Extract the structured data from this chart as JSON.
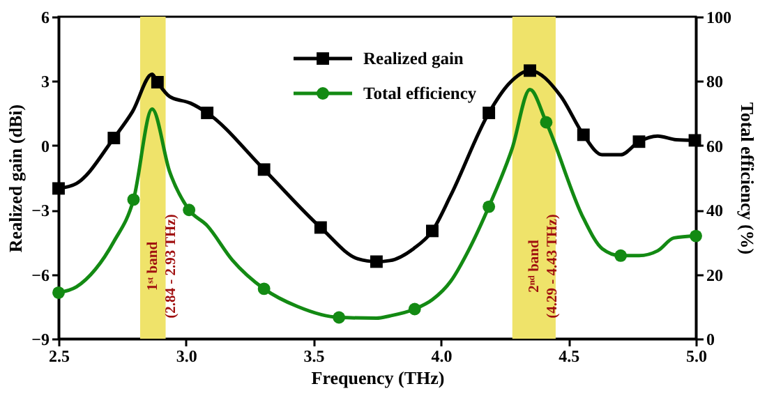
{
  "chart_data": {
    "type": "line",
    "xlabel": "Frequency (THz)",
    "ylabel": "Realized gain (dBi)",
    "y2label": "Total efficiency (%)",
    "xlim": [
      2.5,
      5.0
    ],
    "xticks": [
      2.5,
      {
        "value": 3,
        "label": "3.0"
      },
      3.5,
      {
        "value": 4,
        "label": "4.0"
      },
      4.5,
      {
        "value": 5,
        "label": "5.0"
      }
    ],
    "ylim": [
      -9,
      6
    ],
    "yticks": [
      -9,
      -6,
      -3,
      0,
      3,
      6
    ],
    "y2lim": [
      0,
      100
    ],
    "y2ticks": [
      0,
      20,
      40,
      60,
      80,
      100
    ],
    "grid": false,
    "legend": "top",
    "line_style": "solid",
    "bands": [
      {
        "axis": "x",
        "from": 2.82,
        "to": 2.92,
        "label": "1ˢᵗ band\n(2.84 - 2.93 THz)",
        "color": "#efe36a"
      },
      {
        "axis": "x",
        "from": 4.28,
        "to": 4.45,
        "label": "2ⁿᵈ band\n(4.29 - 4.43 THz)",
        "color": "#efe36a"
      }
    ],
    "series": [
      {
        "name": "Realized gain",
        "color": "#000000",
        "x": [
          2.5,
          2.57,
          2.717,
          2.79,
          2.867,
          2.888,
          2.936,
          3.018,
          3.083,
          3.306,
          3.528,
          3.674,
          3.747,
          3.8,
          3.893,
          3.966,
          4.039,
          4.188,
          4.267,
          4.349,
          4.47,
          4.559,
          4.632,
          4.705,
          4.777,
          4.85,
          4.923,
          4.996
        ],
        "values": [
          -2.0,
          -1.77,
          0.35,
          1.58,
          3.32,
          2.95,
          2.28,
          1.97,
          1.52,
          -1.12,
          -3.82,
          -5.28,
          -5.41,
          -5.36,
          -4.8,
          -3.98,
          -2.31,
          1.52,
          2.88,
          3.49,
          2.3,
          0.5,
          -0.43,
          -0.43,
          0.18,
          0.44,
          0.27,
          0.24
        ]
      },
      {
        "type": "scatter",
        "marker": "square",
        "color": "#000000",
        "x": [
          2.5,
          2.717,
          2.888,
          3.083,
          3.306,
          3.528,
          3.747,
          3.966,
          4.188,
          4.349,
          4.559,
          4.777,
          4.996
        ],
        "values": [
          -2.0,
          0.35,
          2.95,
          1.52,
          -1.12,
          -3.82,
          -5.41,
          -3.98,
          1.52,
          3.49,
          0.5,
          0.18,
          0.24
        ]
      },
      {
        "name": "Total efficiency",
        "axis": "y2",
        "color": "#138a13",
        "x": [
          2.5,
          2.57,
          2.644,
          2.717,
          2.794,
          2.867,
          2.936,
          3.012,
          3.082,
          3.182,
          3.306,
          3.437,
          3.6,
          3.747,
          3.8,
          3.897,
          3.966,
          4.039,
          4.112,
          4.188,
          4.279,
          4.349,
          4.413,
          4.559,
          4.632,
          4.705,
          4.777,
          4.85,
          4.914,
          5.0
        ],
        "values": [
          14.3,
          16.1,
          21.5,
          30.2,
          43.2,
          71.3,
          51.8,
          40.0,
          35.2,
          24.4,
          15.5,
          10.0,
          6.6,
          6.4,
          7.1,
          9.2,
          12.1,
          17.9,
          28.0,
          41.0,
          59.0,
          77.4,
          67.2,
          37.4,
          28.0,
          25.8,
          25.8,
          27.3,
          31.3,
          31.9
        ]
      },
      {
        "type": "scatter",
        "axis": "y2",
        "marker": "circle",
        "color": "#138a13",
        "x": [
          2.5,
          2.794,
          3.012,
          3.306,
          3.6,
          3.897,
          4.188,
          4.413,
          4.705,
          5.0
        ],
        "values": [
          14.3,
          43.2,
          40.0,
          15.5,
          6.6,
          9.2,
          41.0,
          67.2,
          25.8,
          31.9
        ]
      }
    ]
  }
}
